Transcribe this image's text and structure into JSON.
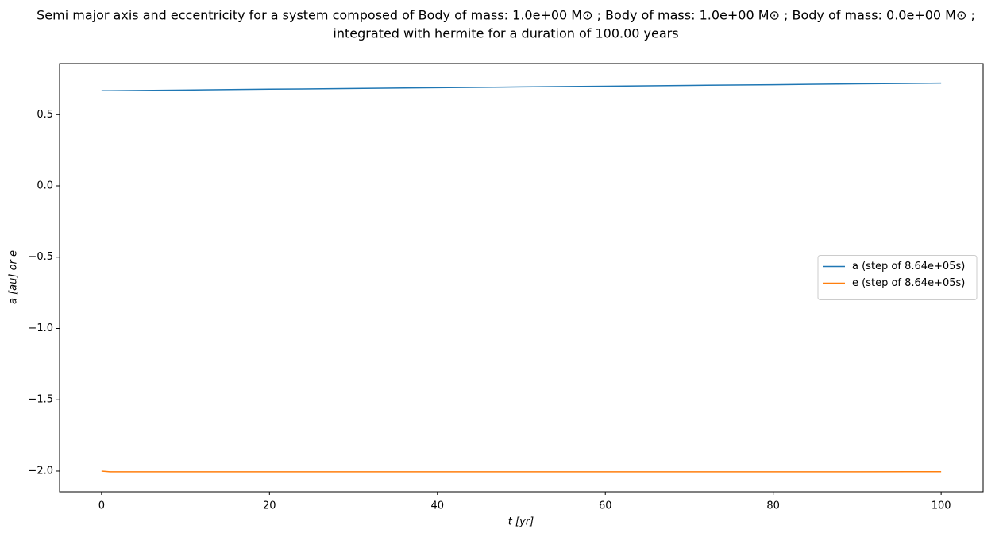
{
  "chart_data": {
    "type": "line",
    "title": [
      "Semi major axis and eccentricity for a system composed of Body of mass: 1.0e+00 M⊙ ; Body of mass: 1.0e+00 M⊙ ; Body of mass: 0.0e+00 M⊙ ;",
      "integrated with hermite for a duration of 100.00 years"
    ],
    "x_label": "t [yr]",
    "y_label": "a [au] or e",
    "x": [
      0,
      1,
      10,
      20,
      30,
      40,
      50,
      60,
      70,
      80,
      90,
      100
    ],
    "series": [
      {
        "name": "a (step of 8.64e+05s)",
        "color": "#1f77b4",
        "values": [
          0.667,
          0.6675,
          0.672,
          0.678,
          0.683,
          0.689,
          0.694,
          0.699,
          0.705,
          0.71,
          0.716,
          0.721
        ]
      },
      {
        "name": "e (step of 8.64e+05s)",
        "color": "#ff7f0e",
        "values": [
          -2.0,
          -2.005,
          -2.005,
          -2.005,
          -2.005,
          -2.005,
          -2.005,
          -2.005,
          -2.005,
          -2.005,
          -2.005,
          -2.004
        ]
      }
    ],
    "xlim": [
      -5,
      105
    ],
    "ylim": [
      -2.145,
      0.858
    ],
    "xticks": [
      0,
      20,
      40,
      60,
      80,
      100
    ],
    "yticks": [
      {
        "value": -2.0,
        "label": "−2.0"
      },
      {
        "value": -1.5,
        "label": "−1.5"
      },
      {
        "value": -1.0,
        "label": "−1.0"
      },
      {
        "value": -0.5,
        "label": "−0.5"
      },
      {
        "value": 0.0,
        "label": "0.0"
      },
      0.5
    ],
    "legend": "center right",
    "grid": false
  }
}
